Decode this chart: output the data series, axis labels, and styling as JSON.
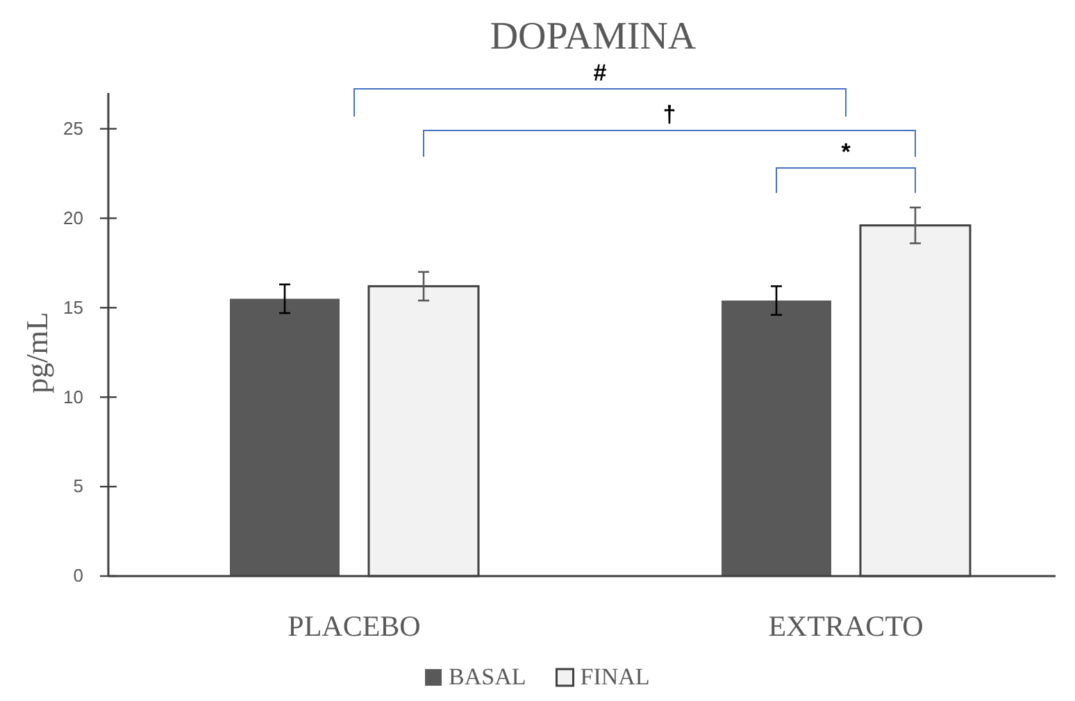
{
  "chart_data": {
    "type": "bar",
    "title": "DOPAMINA",
    "ylabel": "pg/mL",
    "categories": [
      "PLACEBO",
      "EXTRACTO"
    ],
    "series": [
      {
        "name": "BASAL",
        "color": "#595959",
        "values": [
          15.5,
          15.4
        ],
        "errors": [
          0.8,
          0.8
        ]
      },
      {
        "name": "FINAL",
        "color": "#f2f2f2",
        "values": [
          16.2,
          19.6
        ],
        "errors": [
          0.8,
          1.0
        ]
      }
    ],
    "ylim": [
      0,
      27
    ],
    "yticks": [
      0,
      5,
      10,
      15,
      20,
      25
    ],
    "grid": false,
    "legend": "bottom",
    "annotations": [
      "#",
      "†",
      "*"
    ]
  }
}
